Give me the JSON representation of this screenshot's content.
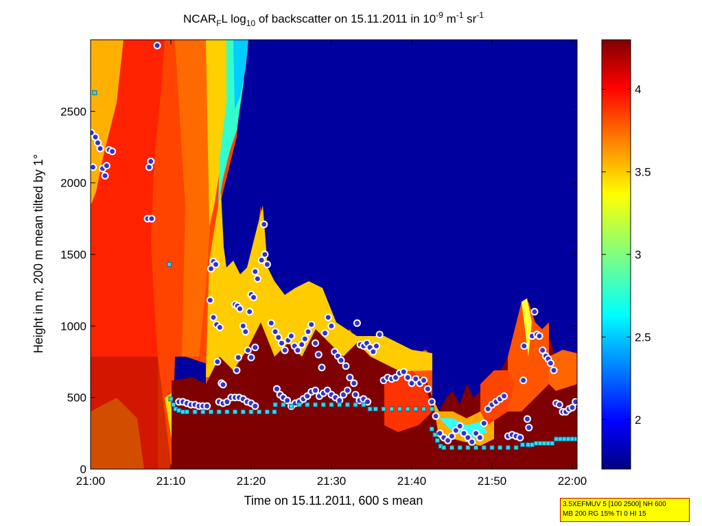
{
  "chart_data": {
    "type": "heatmap",
    "title": {
      "prefix": "NCAR",
      "sub": "F",
      "mid": "L log",
      "log_sub": "10",
      "rest": " of backscatter on 15.11.2011 in 10",
      "exp": "-9",
      "unit_a": " m",
      "unit_a_exp": "-1",
      "unit_b": " sr",
      "unit_b_exp": "-1"
    },
    "xlabel": "Time on 15.11.2011, 600 s mean",
    "ylabel": "Height in m, 200 m mean tilted by 1°",
    "x_ticks": [
      "21:00",
      "21:10",
      "21:20",
      "21:30",
      "21:40",
      "21:50",
      "22:00"
    ],
    "x_tick_minutes": [
      0,
      10,
      20,
      30,
      40,
      50,
      60
    ],
    "xlim_minutes": [
      0,
      60.6
    ],
    "y_ticks": [
      0,
      500,
      1000,
      1500,
      2000,
      2500
    ],
    "ylim": [
      0,
      3000
    ],
    "colorbar": {
      "ticks": [
        2,
        2.5,
        3,
        3.5,
        4
      ],
      "tick_labels": [
        "2",
        "2.5",
        "3",
        "3.5",
        "4"
      ],
      "range": [
        1.7,
        4.3
      ],
      "colormap": "jet"
    },
    "series": [
      {
        "marker": "circle",
        "color": "#3333cc",
        "edge": "#ffffff",
        "points": [
          [
            0.1,
            2350
          ],
          [
            0.3,
            2110
          ],
          [
            0.6,
            2320
          ],
          [
            0.9,
            2280
          ],
          [
            1.2,
            2240
          ],
          [
            1.5,
            2100
          ],
          [
            1.8,
            2050
          ],
          [
            2,
            2120
          ],
          [
            2.3,
            2230
          ],
          [
            2.7,
            2220
          ],
          [
            7.3,
            2110
          ],
          [
            7.5,
            2150
          ],
          [
            7.1,
            1750
          ],
          [
            7.6,
            1750
          ],
          [
            8.3,
            2960
          ],
          [
            15,
            1400
          ],
          [
            15.3,
            1450
          ],
          [
            15.6,
            1430
          ],
          [
            14.9,
            1180
          ],
          [
            15.3,
            1060
          ],
          [
            15.7,
            1010
          ],
          [
            15.8,
            750
          ],
          [
            16.1,
            990
          ],
          [
            16.3,
            600
          ],
          [
            16.5,
            590
          ],
          [
            18,
            1150
          ],
          [
            18.3,
            1140
          ],
          [
            18.6,
            1120
          ],
          [
            19,
            1000
          ],
          [
            19.3,
            960
          ],
          [
            19.8,
            1100
          ],
          [
            20,
            1220
          ],
          [
            20.3,
            1200
          ],
          [
            20.5,
            1380
          ],
          [
            20.8,
            1330
          ],
          [
            21.3,
            1460
          ],
          [
            21.7,
            1500
          ],
          [
            22,
            1430
          ],
          [
            21.6,
            1710
          ],
          [
            19.6,
            830
          ],
          [
            20,
            780
          ],
          [
            20.5,
            850
          ],
          [
            18.4,
            780
          ],
          [
            18.2,
            690
          ],
          [
            22.5,
            1020
          ],
          [
            23,
            960
          ],
          [
            23.4,
            920
          ],
          [
            23.8,
            880
          ],
          [
            24.2,
            830
          ],
          [
            24.6,
            900
          ],
          [
            25,
            930
          ],
          [
            25.4,
            860
          ],
          [
            25.8,
            830
          ],
          [
            26.3,
            870
          ],
          [
            26.7,
            910
          ],
          [
            27.1,
            960
          ],
          [
            27.5,
            1010
          ],
          [
            28,
            880
          ],
          [
            28.4,
            800
          ],
          [
            28.8,
            710
          ],
          [
            29.2,
            950
          ],
          [
            29.6,
            1060
          ],
          [
            30,
            1000
          ],
          [
            30.4,
            820
          ],
          [
            30.8,
            790
          ],
          [
            31.2,
            760
          ],
          [
            31.8,
            720
          ],
          [
            32.3,
            640
          ],
          [
            32.8,
            600
          ],
          [
            33.2,
            1020
          ],
          [
            33.6,
            870
          ],
          [
            34,
            860
          ],
          [
            34.4,
            880
          ],
          [
            34.8,
            850
          ],
          [
            35.2,
            820
          ],
          [
            35.6,
            860
          ],
          [
            36,
            940
          ],
          [
            36.5,
            620
          ],
          [
            37,
            640
          ],
          [
            37.5,
            630
          ],
          [
            38,
            640
          ],
          [
            38.5,
            670
          ],
          [
            39,
            680
          ],
          [
            39.5,
            640
          ],
          [
            40,
            600
          ],
          [
            40.5,
            630
          ],
          [
            41,
            600
          ],
          [
            41.5,
            620
          ],
          [
            42,
            560
          ],
          [
            42.5,
            470
          ],
          [
            43,
            370
          ],
          [
            43.5,
            250
          ],
          [
            44,
            220
          ],
          [
            44.5,
            200
          ],
          [
            45,
            230
          ],
          [
            45.5,
            270
          ],
          [
            46,
            300
          ],
          [
            46.5,
            250
          ],
          [
            47,
            220
          ],
          [
            47.5,
            190
          ],
          [
            48,
            250
          ],
          [
            48.5,
            220
          ],
          [
            49,
            320
          ],
          [
            49.5,
            420
          ],
          [
            50,
            450
          ],
          [
            50.5,
            470
          ],
          [
            51,
            490
          ],
          [
            51.5,
            510
          ],
          [
            52,
            230
          ],
          [
            52.5,
            240
          ],
          [
            53,
            230
          ],
          [
            53.5,
            220
          ],
          [
            53.9,
            620
          ],
          [
            54,
            860
          ],
          [
            54.4,
            350
          ],
          [
            54.6,
            290
          ],
          [
            55,
            930
          ],
          [
            55.3,
            1100
          ],
          [
            55.6,
            940
          ],
          [
            55.9,
            930
          ],
          [
            56.3,
            830
          ],
          [
            56.7,
            790
          ],
          [
            57,
            770
          ],
          [
            57.3,
            740
          ],
          [
            57.7,
            690
          ],
          [
            58,
            460
          ],
          [
            58.4,
            450
          ],
          [
            58.8,
            400
          ],
          [
            59.2,
            400
          ],
          [
            59.6,
            420
          ],
          [
            60,
            430
          ],
          [
            60.4,
            470
          ],
          [
            16,
            470
          ],
          [
            16.5,
            460
          ],
          [
            17,
            470
          ],
          [
            17.5,
            500
          ],
          [
            18,
            500
          ],
          [
            18.5,
            500
          ],
          [
            19,
            490
          ],
          [
            19.5,
            470
          ],
          [
            20,
            460
          ],
          [
            20.5,
            440
          ],
          [
            23.2,
            560
          ],
          [
            23.6,
            520
          ],
          [
            24,
            500
          ],
          [
            24.5,
            480
          ],
          [
            25,
            440
          ],
          [
            25.5,
            460
          ],
          [
            26,
            470
          ],
          [
            26.5,
            490
          ],
          [
            27,
            510
          ],
          [
            27.5,
            540
          ],
          [
            28,
            550
          ],
          [
            28.5,
            510
          ],
          [
            29,
            530
          ],
          [
            29.5,
            550
          ],
          [
            30,
            520
          ],
          [
            30.5,
            500
          ],
          [
            31,
            480
          ],
          [
            31.5,
            520
          ],
          [
            32,
            550
          ],
          [
            33,
            520
          ],
          [
            33.5,
            480
          ],
          [
            34,
            490
          ],
          [
            34.5,
            470
          ],
          [
            11,
            470
          ],
          [
            11.5,
            470
          ],
          [
            12,
            460
          ],
          [
            12.5,
            450
          ],
          [
            13,
            450
          ],
          [
            13.5,
            440
          ],
          [
            14,
            440
          ],
          [
            14.5,
            440
          ]
        ]
      },
      {
        "marker": "square",
        "color": "#33dddd",
        "edge": "#0066aa",
        "points": [
          [
            0.5,
            2630
          ],
          [
            9.8,
            1430
          ],
          [
            10,
            490
          ],
          [
            10.3,
            450
          ],
          [
            10.6,
            420
          ],
          [
            11,
            410
          ],
          [
            11.5,
            400
          ],
          [
            12,
            400
          ],
          [
            13,
            400
          ],
          [
            14,
            400
          ],
          [
            15,
            400
          ],
          [
            16,
            400
          ],
          [
            17,
            400
          ],
          [
            18,
            400
          ],
          [
            19,
            400
          ],
          [
            20,
            400
          ],
          [
            21,
            400
          ],
          [
            22,
            400
          ],
          [
            22.9,
            400
          ],
          [
            23,
            450
          ],
          [
            24,
            450
          ],
          [
            25,
            440
          ],
          [
            26,
            450
          ],
          [
            27,
            450
          ],
          [
            28,
            450
          ],
          [
            29,
            450
          ],
          [
            30,
            450
          ],
          [
            31,
            450
          ],
          [
            32,
            450
          ],
          [
            33,
            450
          ],
          [
            34,
            450
          ],
          [
            34.8,
            420
          ],
          [
            35.5,
            420
          ],
          [
            36.5,
            420
          ],
          [
            37.5,
            420
          ],
          [
            38.5,
            420
          ],
          [
            39.5,
            420
          ],
          [
            40.5,
            420
          ],
          [
            41.5,
            420
          ],
          [
            42.5,
            420
          ],
          [
            42.5,
            280
          ],
          [
            42.9,
            240
          ],
          [
            43.2,
            200
          ],
          [
            43.6,
            160
          ],
          [
            44,
            150
          ],
          [
            45,
            150
          ],
          [
            46,
            150
          ],
          [
            47,
            150
          ],
          [
            48,
            150
          ],
          [
            49,
            150
          ],
          [
            50,
            150
          ],
          [
            51,
            150
          ],
          [
            52,
            150
          ],
          [
            53,
            150
          ],
          [
            53.8,
            170
          ],
          [
            54.5,
            170
          ],
          [
            55,
            170
          ],
          [
            55.5,
            180
          ],
          [
            56,
            180
          ],
          [
            56.5,
            180
          ],
          [
            57,
            180
          ],
          [
            57.5,
            180
          ],
          [
            58,
            210
          ],
          [
            58.5,
            210
          ],
          [
            59,
            210
          ],
          [
            59.5,
            210
          ],
          [
            60,
            210
          ],
          [
            60.5,
            210
          ]
        ]
      }
    ]
  },
  "annotation": {
    "line1": "3.5XEFMUV 5 [100 2500] NH 600",
    "line2": "MB 200 RG 15% TI 0 HI 15"
  }
}
